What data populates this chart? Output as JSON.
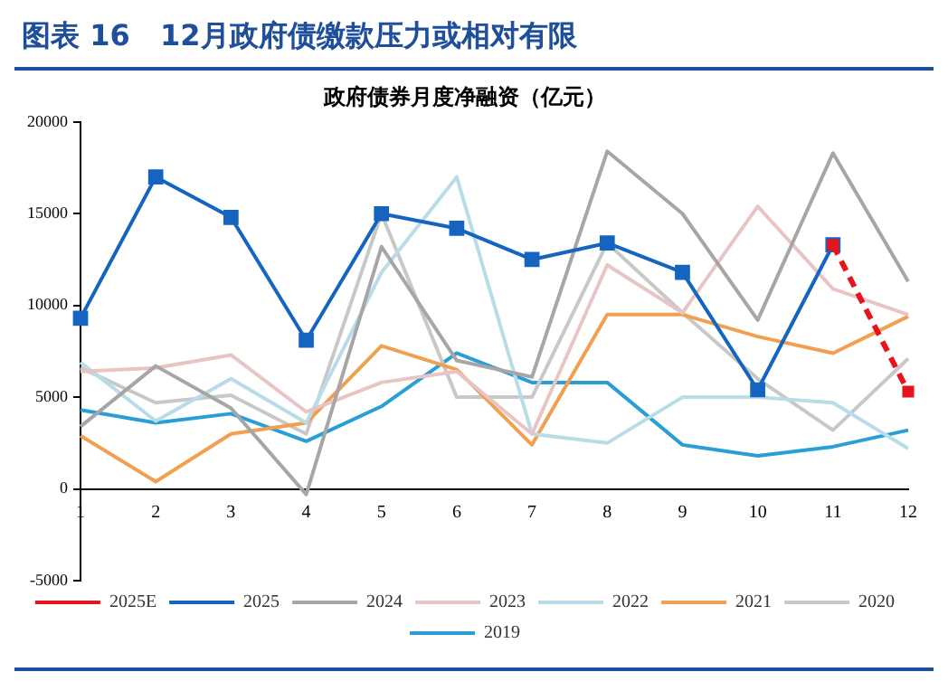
{
  "chart_data": {
    "type": "line",
    "title": "图表 16   12月政府债缴款压力或相对有限",
    "subtitle": "政府债券月度净融资（亿元）",
    "categories": [
      "1",
      "2",
      "3",
      "4",
      "5",
      "6",
      "7",
      "8",
      "9",
      "10",
      "11",
      "12"
    ],
    "series": [
      {
        "name": "2025E",
        "color": "#e8141c",
        "line_style": "dashed",
        "marker": "square",
        "values": [
          null,
          null,
          null,
          null,
          null,
          null,
          null,
          null,
          null,
          null,
          13300,
          5300
        ]
      },
      {
        "name": "2025",
        "color": "#1565c0",
        "marker": "square",
        "values": [
          9300,
          17000,
          14800,
          8100,
          15000,
          14200,
          12500,
          13400,
          11800,
          5400,
          13300,
          null
        ]
      },
      {
        "name": "2024",
        "color": "#a6a6a6",
        "values": [
          3400,
          6700,
          4400,
          -300,
          13200,
          7000,
          6100,
          18400,
          15000,
          9200,
          18300,
          11300
        ]
      },
      {
        "name": "2023",
        "color": "#e8c4c4",
        "values": [
          6400,
          6600,
          7300,
          4200,
          5800,
          6400,
          3000,
          12200,
          9600,
          15400,
          10900,
          9500
        ]
      },
      {
        "name": "2022",
        "color": "#b8dce8",
        "values": [
          6900,
          3700,
          6000,
          3600,
          11800,
          17000,
          3000,
          2500,
          5000,
          5000,
          4700,
          2200
        ]
      },
      {
        "name": "2021",
        "color": "#f0a050",
        "values": [
          2900,
          400,
          3000,
          3600,
          7800,
          6500,
          2400,
          9500,
          9500,
          8300,
          7400,
          9400
        ]
      },
      {
        "name": "2020",
        "color": "#c8c8c8",
        "values": [
          6600,
          4700,
          5100,
          3000,
          15000,
          5000,
          5000,
          13400,
          9600,
          6000,
          3200,
          7100
        ]
      },
      {
        "name": "2019",
        "color": "#2a9fd6",
        "values": [
          4300,
          3600,
          4100,
          2600,
          4500,
          7400,
          5800,
          5800,
          2400,
          1800,
          2300,
          3200
        ]
      }
    ],
    "ylim": [
      -5000,
      20000
    ],
    "yticks": [
      -5000,
      0,
      5000,
      10000,
      15000,
      20000
    ],
    "grid": false,
    "legend": "bottom",
    "marker": "none",
    "line_style": "solid"
  }
}
